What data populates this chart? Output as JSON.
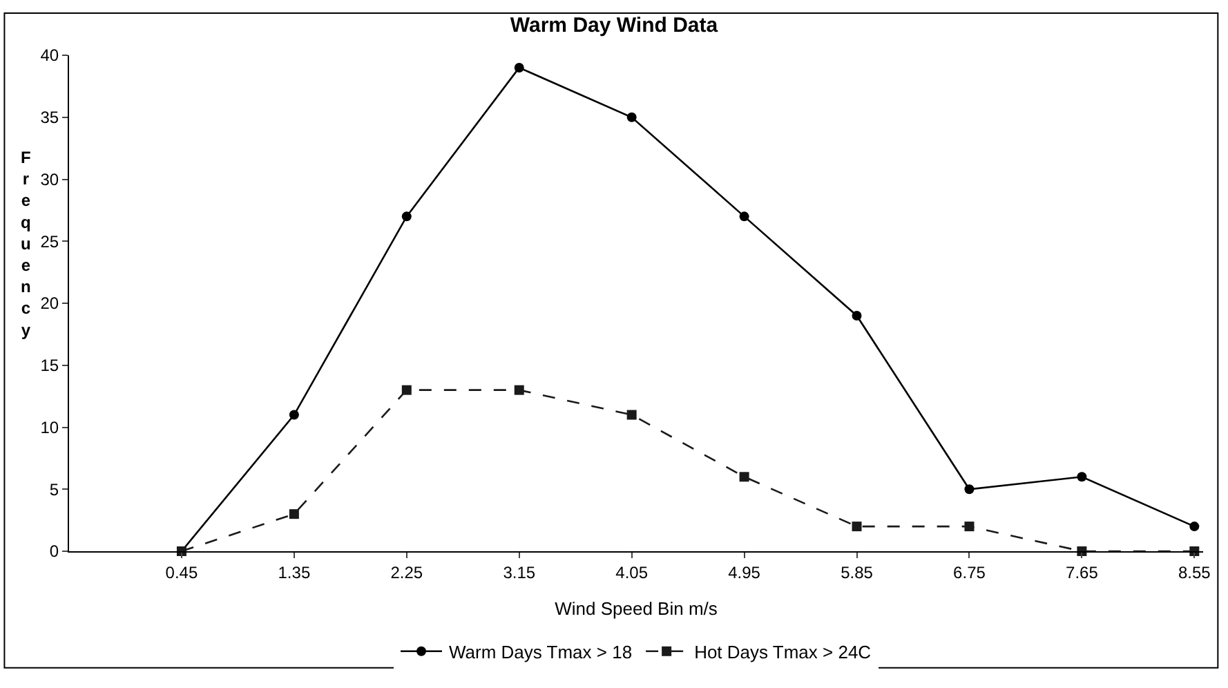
{
  "chart_data": {
    "type": "line",
    "title": "Warm Day Wind Data",
    "xlabel": "Wind Speed Bin m/s",
    "ylabel": "Frequency",
    "x": [
      0.45,
      1.35,
      2.25,
      3.15,
      4.05,
      4.95,
      5.85,
      6.75,
      7.65,
      8.55
    ],
    "series": [
      {
        "name": "Warm Days Tmax > 18",
        "color": "#000000",
        "values": [
          0,
          11,
          27,
          39,
          35,
          27,
          19,
          5,
          6,
          2
        ],
        "marker": "circle",
        "line_style": "solid"
      },
      {
        "name": "Hot Days Tmax > 24C",
        "color": "#1a1a1a",
        "values": [
          0,
          3,
          13,
          13,
          11,
          6,
          2,
          2,
          0,
          0
        ],
        "marker": "square",
        "line_style": "dashed"
      }
    ],
    "xlim": [
      -0.45,
      8.62
    ],
    "xticks": [
      0.45,
      1.35,
      2.25,
      3.15,
      4.05,
      4.95,
      5.85,
      6.75,
      7.65,
      8.55
    ],
    "ylim": [
      0,
      40
    ],
    "yticks": [
      0,
      5,
      10,
      15,
      20,
      25,
      30,
      35,
      40
    ],
    "legend": "bottom"
  }
}
